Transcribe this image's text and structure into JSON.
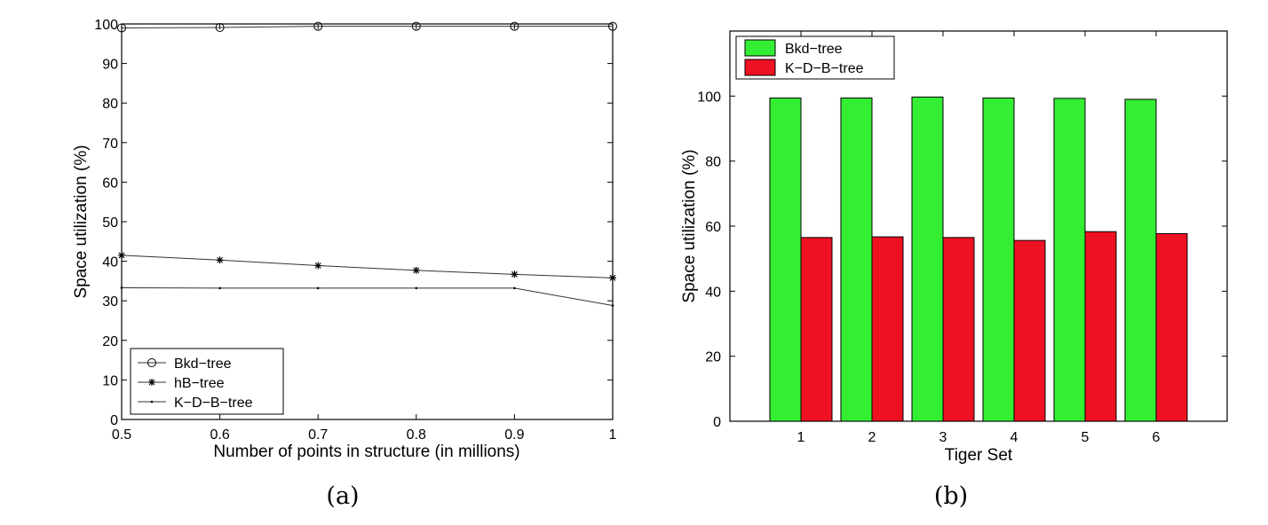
{
  "chart_data": [
    {
      "type": "line",
      "caption": "(a)",
      "xlabel": "Number of points in structure (in millions)",
      "ylabel": "Space utilization (%)",
      "xlim": [
        0.5,
        1.0
      ],
      "ylim": [
        0,
        100
      ],
      "xticks": [
        "0.5",
        "0.6",
        "0.7",
        "0.8",
        "0.9",
        "1"
      ],
      "yticks": [
        "0",
        "10",
        "20",
        "30",
        "40",
        "50",
        "60",
        "70",
        "80",
        "90",
        "100"
      ],
      "grid": false,
      "legend_position": "bottom-left",
      "x": [
        0.5,
        0.6,
        0.7,
        0.8,
        0.9,
        1.0
      ],
      "series": [
        {
          "name": "Bkd−tree",
          "marker": "circle",
          "values": [
            99.0,
            99.1,
            99.4,
            99.4,
            99.4,
            99.4
          ]
        },
        {
          "name": "hB−tree",
          "marker": "star",
          "values": [
            41.5,
            40.3,
            38.9,
            37.7,
            36.7,
            35.8
          ]
        },
        {
          "name": "K−D−B−tree",
          "marker": "dot",
          "values": [
            33.3,
            33.2,
            33.2,
            33.2,
            33.2,
            28.8
          ]
        }
      ]
    },
    {
      "type": "bar",
      "caption": "(b)",
      "xlabel": "Tiger Set",
      "ylabel": "Space utilization (%)",
      "categories": [
        "1",
        "2",
        "3",
        "4",
        "5",
        "6"
      ],
      "ylim": [
        0,
        120
      ],
      "yticks": [
        "0",
        "20",
        "40",
        "60",
        "80",
        "100"
      ],
      "grid": false,
      "legend_position": "top-left",
      "series": [
        {
          "name": "Bkd−tree",
          "color": "#33ee33",
          "values": [
            99.4,
            99.4,
            99.7,
            99.4,
            99.3,
            99.0
          ]
        },
        {
          "name": "K−D−B−tree",
          "color": "#ee1122",
          "values": [
            56.5,
            56.7,
            56.5,
            55.6,
            58.3,
            57.7
          ]
        }
      ]
    }
  ]
}
